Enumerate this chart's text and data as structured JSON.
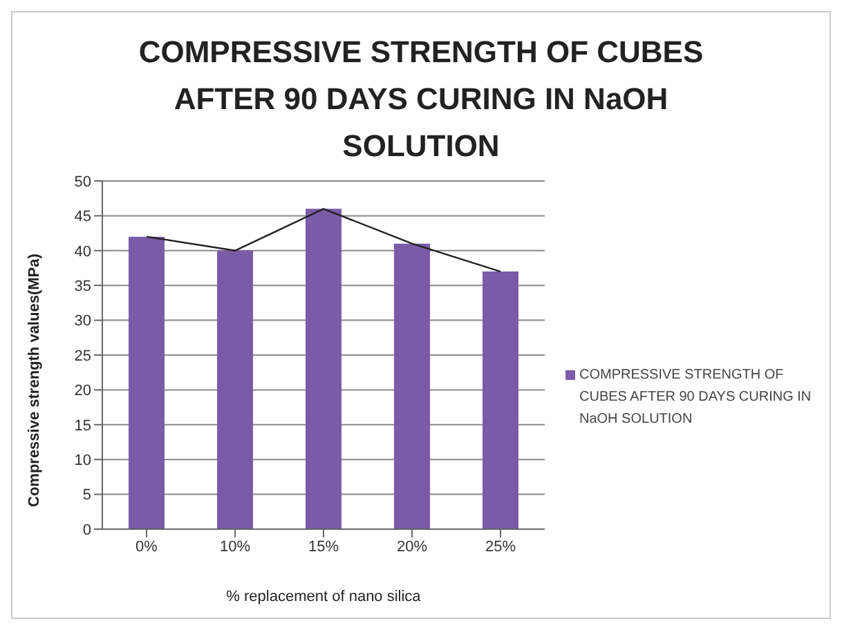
{
  "chart_data": {
    "type": "bar",
    "title": "COMPRESSIVE STRENGTH OF CUBES AFTER 90 DAYS  CURING IN NaOH SOLUTION",
    "xlabel": "% replacement of nano silica",
    "ylabel": "Compressive strength values(MPa)",
    "categories": [
      "0%",
      "10%",
      "15%",
      "20%",
      "25%"
    ],
    "series": [
      {
        "name": "COMPRESSIVE STRENGTH  OF CUBES AFTER 90 DAYS  CURING IN NaOH SOLUTION",
        "color": "#7b5ba8",
        "values": [
          42,
          40,
          46,
          41,
          37
        ]
      },
      {
        "type": "line",
        "color": "#222222",
        "values": [
          42,
          40,
          46,
          41,
          37
        ]
      }
    ],
    "ylim": [
      0,
      50
    ],
    "yticks": [
      0,
      5,
      10,
      15,
      20,
      25,
      30,
      35,
      40,
      45,
      50
    ],
    "grid": "y",
    "legend": "right"
  }
}
